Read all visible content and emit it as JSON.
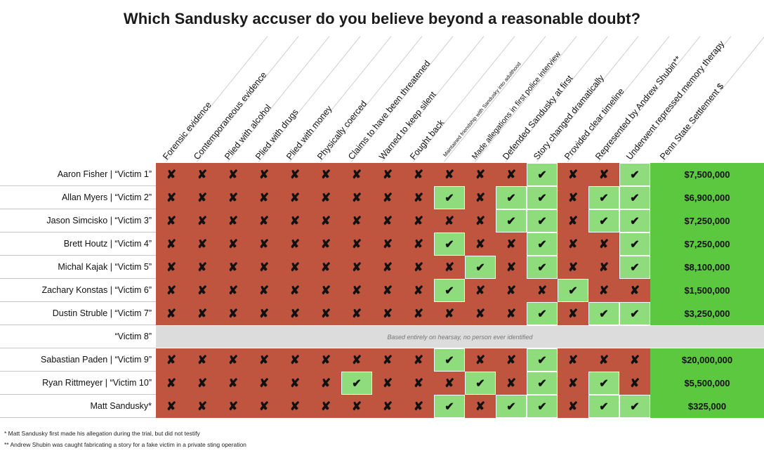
{
  "title": "Which Sandusky accuser do you believe beyond a reasonable doubt?",
  "colors": {
    "red": "#c0553f",
    "light_green": "#8fdc7c",
    "bright_green": "#5bc840",
    "band": "#dcdcdc"
  },
  "chart_data": {
    "type": "table",
    "columns": [
      "Forensic evidence",
      "Contemporaneous evidence",
      "Plied with alcohol",
      "Plied with drugs",
      "Plied with money",
      "Physically coerced",
      "Claims to have been threatened",
      "Warned to keep silent",
      "Fought back",
      "Maintained friendship with Sandusky into adulthood",
      "Made allegations in first police interview",
      "Defended Sandusky at first",
      "Story changed dramatically",
      "Provided clear timeline",
      "Represented by Andrew Shubin**",
      "Underwent repressed memory therapy",
      "Penn State Settlement $"
    ],
    "rows": [
      {
        "label": "Aaron Fisher | “Victim 1”",
        "marks": [
          "x",
          "x",
          "x",
          "x",
          "x",
          "x",
          "x",
          "x",
          "x",
          "x",
          "x",
          "x",
          "check",
          "x",
          "x",
          "check"
        ],
        "settlement": "$7,500,000"
      },
      {
        "label": "Allan Myers | “Victim 2”",
        "marks": [
          "x",
          "x",
          "x",
          "x",
          "x",
          "x",
          "x",
          "x",
          "x",
          "check",
          "x",
          "check",
          "check",
          "x",
          "check",
          "check"
        ],
        "settlement": "$6,900,000"
      },
      {
        "label": "Jason Simcisko | “Victim 3”",
        "marks": [
          "x",
          "x",
          "x",
          "x",
          "x",
          "x",
          "x",
          "x",
          "x",
          "x",
          "x",
          "check",
          "check",
          "x",
          "check",
          "check"
        ],
        "settlement": "$7,250,000"
      },
      {
        "label": "Brett Houtz | “Victim 4”",
        "marks": [
          "x",
          "x",
          "x",
          "x",
          "x",
          "x",
          "x",
          "x",
          "x",
          "check",
          "x",
          "x",
          "check",
          "x",
          "x",
          "check"
        ],
        "settlement": "$7,250,000"
      },
      {
        "label": "Michal Kajak | “Victim 5”",
        "marks": [
          "x",
          "x",
          "x",
          "x",
          "x",
          "x",
          "x",
          "x",
          "x",
          "x",
          "check",
          "x",
          "check",
          "x",
          "x",
          "check"
        ],
        "settlement": "$8,100,000"
      },
      {
        "label": "Zachary Konstas | “Victim 6”",
        "marks": [
          "x",
          "x",
          "x",
          "x",
          "x",
          "x",
          "x",
          "x",
          "x",
          "check",
          "x",
          "x",
          "x",
          "check",
          "x",
          "x"
        ],
        "settlement": "$1,500,000"
      },
      {
        "label": "Dustin Struble | “Victim 7”",
        "marks": [
          "x",
          "x",
          "x",
          "x",
          "x",
          "x",
          "x",
          "x",
          "x",
          "x",
          "x",
          "x",
          "check",
          "x",
          "check",
          "check"
        ],
        "settlement": "$3,250,000"
      },
      {
        "label": "“Victim 8”",
        "note": "Based entirely on hearsay, no person ever identified"
      },
      {
        "label": "Sabastian Paden | “Victim 9”",
        "marks": [
          "x",
          "x",
          "x",
          "x",
          "x",
          "x",
          "x",
          "x",
          "x",
          "check",
          "x",
          "x",
          "check",
          "x",
          "x",
          "x"
        ],
        "settlement": "$20,000,000"
      },
      {
        "label": "Ryan Rittmeyer | “Victim 10”",
        "marks": [
          "x",
          "x",
          "x",
          "x",
          "x",
          "x",
          "check",
          "x",
          "x",
          "x",
          "check",
          "x",
          "check",
          "x",
          "check",
          "x"
        ],
        "settlement": "$5,500,000"
      },
      {
        "label": "Matt Sandusky*",
        "marks": [
          "x",
          "x",
          "x",
          "x",
          "x",
          "x",
          "x",
          "x",
          "x",
          "check",
          "x",
          "check",
          "check",
          "x",
          "check",
          "check"
        ],
        "settlement": "$325,000"
      }
    ]
  },
  "symbols": {
    "x": "✘",
    "check": "✔"
  },
  "footnotes": [
    "* Matt Sandusky first made his allegation during the trial, but did not testify",
    "** Andrew Shubin was caught fabricating a story for a fake victim in a private sting operation"
  ]
}
